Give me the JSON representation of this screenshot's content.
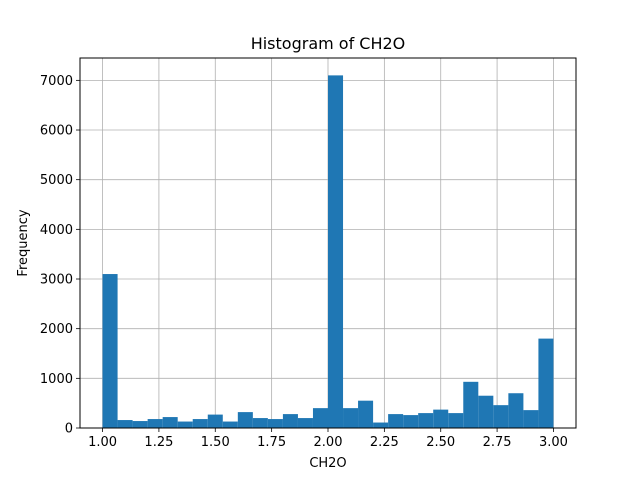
{
  "chart_data": {
    "type": "bar",
    "title": "Histogram of CH2O",
    "xlabel": "CH2O",
    "ylabel": "Frequency",
    "xlim": [
      0.9,
      3.1
    ],
    "ylim": [
      0,
      7450
    ],
    "grid": true,
    "bar_color": "#1f77b4",
    "xticks": [
      "1.00",
      "1.25",
      "1.50",
      "1.75",
      "2.00",
      "2.25",
      "2.50",
      "2.75",
      "3.00"
    ],
    "xtick_values": [
      1.0,
      1.25,
      1.5,
      1.75,
      2.0,
      2.25,
      2.5,
      2.75,
      3.0
    ],
    "yticks": [
      "0",
      "1000",
      "2000",
      "3000",
      "4000",
      "5000",
      "6000",
      "7000"
    ],
    "ytick_values": [
      0,
      1000,
      2000,
      3000,
      4000,
      5000,
      6000,
      7000
    ],
    "bin_edges": [
      1.0,
      1.0667,
      1.1333,
      1.2,
      1.2667,
      1.3333,
      1.4,
      1.4667,
      1.5333,
      1.6,
      1.6667,
      1.7333,
      1.8,
      1.8667,
      1.9333,
      2.0,
      2.0667,
      2.1333,
      2.2,
      2.2667,
      2.3333,
      2.4,
      2.4667,
      2.5333,
      2.6,
      2.6667,
      2.7333,
      2.8,
      2.8667,
      2.9333,
      3.0
    ],
    "values": [
      3100,
      160,
      140,
      180,
      220,
      130,
      180,
      270,
      130,
      320,
      200,
      180,
      280,
      200,
      400,
      7100,
      400,
      550,
      110,
      280,
      260,
      300,
      370,
      300,
      930,
      650,
      460,
      700,
      360,
      1800
    ]
  }
}
